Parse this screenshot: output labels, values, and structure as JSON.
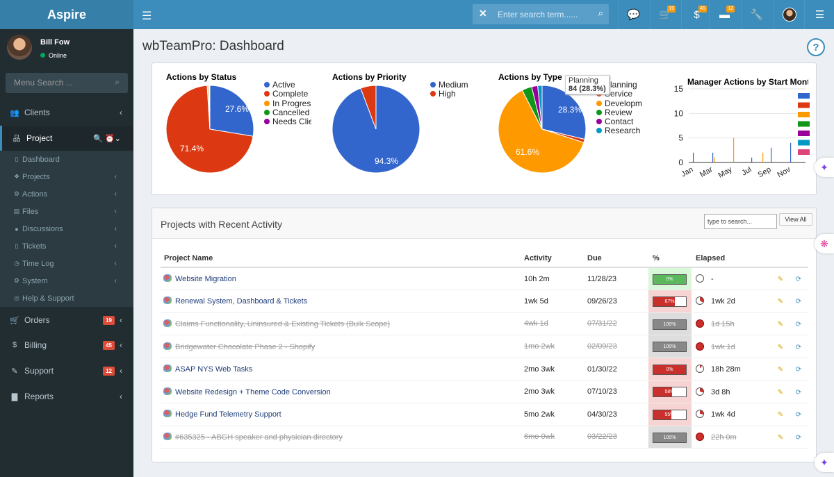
{
  "topbar": {
    "brand": "Aspire",
    "search_placeholder": "Enter search term......",
    "badges": {
      "cart": "19",
      "billing": "45",
      "tickets": "12"
    }
  },
  "sidebar": {
    "user_name": "Bill Fow",
    "user_status": "Online",
    "menu_search_placeholder": "Menu Search ...",
    "items": {
      "clients": "Clients",
      "project": "Project",
      "orders": "Orders",
      "billing": "Billing",
      "support": "Support",
      "reports": "Reports"
    },
    "badges": {
      "orders": "19",
      "billing": "45",
      "support": "12"
    },
    "sub": [
      "Dashboard",
      "Projects",
      "Actions",
      "Files",
      "Discussions",
      "Tickets",
      "Time Log",
      "System",
      "Help & Support"
    ]
  },
  "page": {
    "title": "wbTeamPro: Dashboard",
    "help": "?"
  },
  "charts": {
    "status": {
      "title": "Actions by Status",
      "labels": [
        "27.6%",
        "71.4%"
      ],
      "legend": [
        "Active",
        "Complete",
        "In Progress",
        "Cancelled",
        "Needs Client Review"
      ]
    },
    "priority": {
      "title": "Actions by Priority",
      "labels": [
        "94.3%"
      ],
      "legend": [
        "Medium",
        "High"
      ]
    },
    "type": {
      "title": "Actions by Type",
      "labels": [
        "28.3%",
        "61.6%"
      ],
      "tooltip_title": "Planning",
      "tooltip_value": "84 (28.3%)",
      "legend": [
        "Planning",
        "Service",
        "Development",
        "Review",
        "Contact",
        "Research"
      ]
    },
    "manager": {
      "title": "Manager Actions by Start Month",
      "yticks": [
        "15",
        "10",
        "5",
        "0"
      ],
      "xticks": [
        "Jan",
        "Mar",
        "May",
        "Jul",
        "Sep",
        "Nov"
      ]
    }
  },
  "chart_data": [
    {
      "type": "pie",
      "title": "Actions by Status",
      "categories": [
        "Active",
        "Complete",
        "In Progress",
        "Cancelled",
        "Needs Client Review"
      ],
      "values": [
        27.6,
        71.4,
        0.5,
        0.3,
        0.2
      ],
      "colors": [
        "#3366cc",
        "#dc3912",
        "#ff9900",
        "#109618",
        "#990099"
      ]
    },
    {
      "type": "pie",
      "title": "Actions by Priority",
      "categories": [
        "Medium",
        "High"
      ],
      "values": [
        94.3,
        5.7
      ],
      "colors": [
        "#3366cc",
        "#dc3912"
      ]
    },
    {
      "type": "pie",
      "title": "Actions by Type",
      "categories": [
        "Planning",
        "Service",
        "Development",
        "Review",
        "Contact",
        "Research"
      ],
      "values": [
        28.3,
        1.2,
        61.6,
        3.6,
        2.2,
        1.6
      ],
      "colors": [
        "#3366cc",
        "#dc3912",
        "#ff9900",
        "#109618",
        "#990099",
        "#0099c6"
      ]
    },
    {
      "type": "bar",
      "title": "Manager Actions by Start Month",
      "categories": [
        "Jan",
        "Feb",
        "Mar",
        "Apr",
        "May",
        "Jun",
        "Jul",
        "Aug",
        "Sep",
        "Oct",
        "Nov",
        "Dec"
      ],
      "ylim": [
        0,
        15
      ],
      "series": [
        {
          "values": [
            2,
            0,
            2,
            0,
            0,
            0,
            1,
            0,
            3,
            0,
            4,
            0
          ],
          "color": "#3366cc"
        },
        {
          "values": [
            0,
            0,
            1,
            0,
            5,
            0,
            0,
            2,
            0,
            0,
            0,
            0
          ],
          "color": "#ff9900"
        }
      ]
    }
  ],
  "projects": {
    "title": "Projects with Recent Activity",
    "search_placeholder": "type to search...",
    "view_all": "View All",
    "columns": [
      "Project Name",
      "Activity",
      "Due",
      "%",
      "Elapsed"
    ],
    "rows": [
      {
        "name": "Website Migration",
        "activity": "10h 2m",
        "due": "11/28/23",
        "pct": "0%",
        "pct_value": 0,
        "elapsed": "-",
        "done": false,
        "bg": "#d9f7d9",
        "fill": "#5cb85c"
      },
      {
        "name": "Renewal System, Dashboard & Tickets",
        "activity": "1wk 5d",
        "due": "09/26/23",
        "pct": "67%",
        "pct_value": 67,
        "elapsed": "1wk 2d",
        "done": false,
        "bg": "#f7d4d4",
        "fill": "#c9302c"
      },
      {
        "name": "Claims Functionality, Uninsured & Existing Tickets (Bulk Scope)",
        "activity": "4wk 1d",
        "due": "07/31/22",
        "pct": "100%",
        "pct_value": 100,
        "elapsed": "1d 15h",
        "done": true,
        "bg": "#ddd",
        "fill": "#888"
      },
      {
        "name": "Bridgewater Chocolate Phase 2 - Shopify",
        "activity": "1mo 2wk",
        "due": "02/09/23",
        "pct": "100%",
        "pct_value": 100,
        "elapsed": "1wk 1d",
        "done": true,
        "bg": "#ddd",
        "fill": "#888"
      },
      {
        "name": "ASAP NYS Web Tasks",
        "activity": "2mo 3wk",
        "due": "01/30/22",
        "pct": "0%",
        "pct_value": 0,
        "elapsed": "18h 28m",
        "done": false,
        "bg": "#f7d4d4",
        "fill": "#c9302c"
      },
      {
        "name": "Website Redesign + Theme Code Conversion",
        "activity": "2mo 3wk",
        "due": "07/10/23",
        "pct": "58%",
        "pct_value": 58,
        "elapsed": "3d 8h",
        "done": false,
        "bg": "#f7d4d4",
        "fill": "#c9302c"
      },
      {
        "name": "Hedge Fund Telemetry Support",
        "activity": "5mo 2wk",
        "due": "04/30/23",
        "pct": "55%",
        "pct_value": 55,
        "elapsed": "1wk 4d",
        "done": false,
        "bg": "#f7d4d4",
        "fill": "#c9302c"
      },
      {
        "name": "#635325 - ABGH speaker and physician directory",
        "activity": "6mo 0wk",
        "due": "03/22/23",
        "pct": "100%",
        "pct_value": 100,
        "elapsed": "22h 0m",
        "done": true,
        "bg": "#ddd",
        "fill": "#888"
      }
    ]
  }
}
